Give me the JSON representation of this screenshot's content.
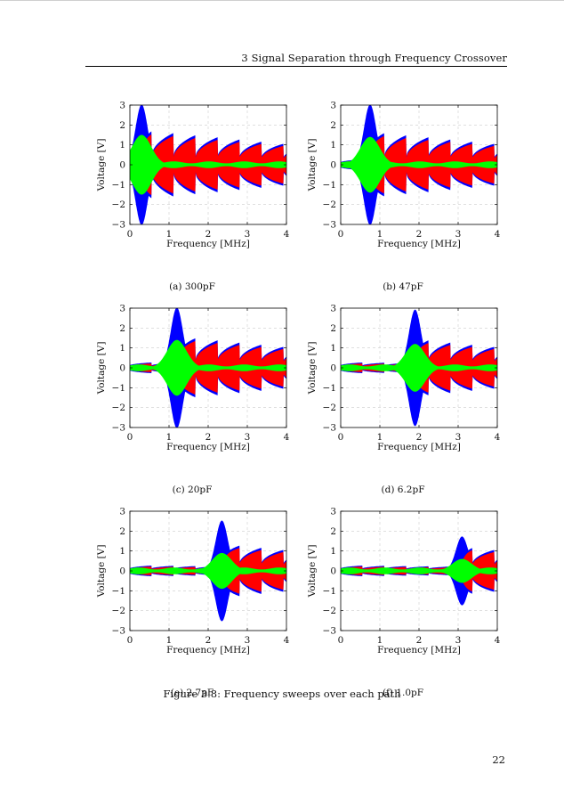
{
  "header": {
    "running_title": "3  Signal Separation through Frequency Crossover"
  },
  "figure": {
    "caption": "Figure 3.8: Frequency sweeps over each path"
  },
  "page_number": "22",
  "colors": {
    "blue": "#0000ff",
    "red": "#ff0000",
    "green": "#00ff00",
    "grid": "#cccccc"
  },
  "chart_data": [
    {
      "type": "area",
      "caption": "(a) 300pF",
      "xlabel": "Frequency [MHz]",
      "ylabel": "Voltage [V]",
      "xlim": [
        0,
        4
      ],
      "ylim": [
        -3,
        3
      ],
      "xticks": [
        "0",
        "1",
        "2",
        "3",
        "4"
      ],
      "yticks": [
        "3",
        "2",
        "1",
        "0",
        "−1",
        "−2",
        "−3"
      ],
      "grid": true,
      "crossover_mhz": 0.3,
      "series": [
        {
          "color": "blue",
          "peak": 3.0
        },
        {
          "color": "red",
          "peak": 1.8
        },
        {
          "color": "green",
          "peak": 1.5
        }
      ]
    },
    {
      "type": "area",
      "caption": "(b) 47pF",
      "xlabel": "Frequency [MHz]",
      "ylabel": "Voltage [V]",
      "xlim": [
        0,
        4
      ],
      "ylim": [
        -3,
        3
      ],
      "xticks": [
        "0",
        "1",
        "2",
        "3",
        "4"
      ],
      "yticks": [
        "3",
        "2",
        "1",
        "0",
        "−1",
        "−2",
        "−3"
      ],
      "grid": true,
      "crossover_mhz": 0.75,
      "series": [
        {
          "color": "blue",
          "peak": 3.0
        },
        {
          "color": "red",
          "peak": 1.8
        },
        {
          "color": "green",
          "peak": 1.4
        }
      ]
    },
    {
      "type": "area",
      "caption": "(c) 20pF",
      "xlabel": "Frequency [MHz]",
      "ylabel": "Voltage [V]",
      "xlim": [
        0,
        4
      ],
      "ylim": [
        -3,
        3
      ],
      "xticks": [
        "0",
        "1",
        "2",
        "3",
        "4"
      ],
      "yticks": [
        "3",
        "2",
        "1",
        "0",
        "−1",
        "−2",
        "−3"
      ],
      "grid": true,
      "crossover_mhz": 1.2,
      "series": [
        {
          "color": "blue",
          "peak": 3.0
        },
        {
          "color": "red",
          "peak": 1.8
        },
        {
          "color": "green",
          "peak": 1.4
        }
      ]
    },
    {
      "type": "area",
      "caption": "(d) 6.2pF",
      "xlabel": "Frequency [MHz]",
      "ylabel": "Voltage [V]",
      "xlim": [
        0,
        4
      ],
      "ylim": [
        -3,
        3
      ],
      "xticks": [
        "0",
        "1",
        "2",
        "3",
        "4"
      ],
      "yticks": [
        "3",
        "2",
        "1",
        "0",
        "−1",
        "−2",
        "−3"
      ],
      "grid": true,
      "crossover_mhz": 1.9,
      "series": [
        {
          "color": "blue",
          "peak": 2.9
        },
        {
          "color": "red",
          "peak": 1.8
        },
        {
          "color": "green",
          "peak": 1.2
        }
      ]
    },
    {
      "type": "area",
      "caption": "(e) 2.7pF",
      "xlabel": "Frequency [MHz]",
      "ylabel": "Voltage [V]",
      "xlim": [
        0,
        4
      ],
      "ylim": [
        -3,
        3
      ],
      "xticks": [
        "0",
        "1",
        "2",
        "3",
        "4"
      ],
      "yticks": [
        "3",
        "2",
        "1",
        "0",
        "−1",
        "−2",
        "−3"
      ],
      "grid": true,
      "crossover_mhz": 2.35,
      "series": [
        {
          "color": "blue",
          "peak": 2.5
        },
        {
          "color": "red",
          "peak": 1.8
        },
        {
          "color": "green",
          "peak": 0.9
        }
      ]
    },
    {
      "type": "area",
      "caption": "(f) 1.0pF",
      "xlabel": "Frequency [MHz]",
      "ylabel": "Voltage [V]",
      "xlim": [
        0,
        4
      ],
      "ylim": [
        -3,
        3
      ],
      "xticks": [
        "0",
        "1",
        "2",
        "3",
        "4"
      ],
      "yticks": [
        "3",
        "2",
        "1",
        "0",
        "−1",
        "−2",
        "−3"
      ],
      "grid": true,
      "crossover_mhz": 3.1,
      "series": [
        {
          "color": "blue",
          "peak": 1.7
        },
        {
          "color": "red",
          "peak": 1.8
        },
        {
          "color": "green",
          "peak": 0.6
        }
      ]
    }
  ]
}
